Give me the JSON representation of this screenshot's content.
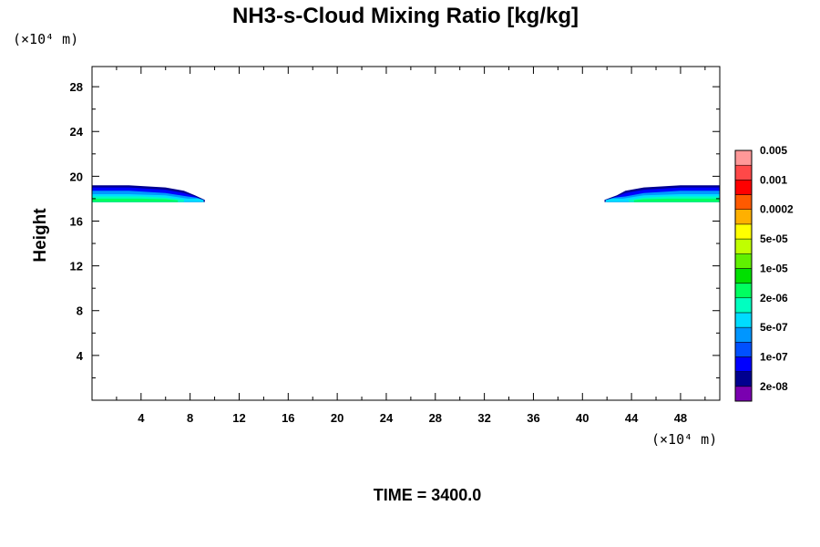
{
  "chart_data": {
    "type": "heatmap",
    "title": "NH3-s-Cloud Mixing Ratio [kg/kg]",
    "ylabel": "Height",
    "xlabel": "",
    "x_unit": "(×10⁴ m)",
    "y_unit": "(×10⁴ m)",
    "xlim": [
      0,
      51.2
    ],
    "ylim": [
      0,
      29.8
    ],
    "x_ticks": [
      4,
      8,
      12,
      16,
      20,
      24,
      28,
      32,
      36,
      40,
      44,
      48
    ],
    "y_ticks": [
      4,
      8,
      12,
      16,
      20,
      24,
      28
    ],
    "grid": false,
    "colorbar": {
      "placement": "right",
      "colors": [
        "#7a00b0",
        "#00008f",
        "#0000ff",
        "#0050ff",
        "#0096ff",
        "#00dcff",
        "#00ffc0",
        "#00ff60",
        "#00e000",
        "#60f000",
        "#c0ff00",
        "#ffff00",
        "#ffb000",
        "#ff5a00",
        "#ff0000",
        "#ff4848",
        "#ff9898"
      ],
      "labels": [
        "2e-08",
        "1e-07",
        "5e-07",
        "2e-06",
        "1e-05",
        "5e-05",
        "0.0002",
        "0.001",
        "0.005"
      ]
    },
    "regions": [
      {
        "name": "left",
        "bands": [
          {
            "color": "#00008f",
            "points": [
              [
                0,
                19.2
              ],
              [
                3,
                19.2
              ],
              [
                6,
                19.0
              ],
              [
                7.5,
                18.7
              ],
              [
                8.4,
                18.3
              ],
              [
                9.2,
                17.9
              ],
              [
                9.2,
                17.7
              ],
              [
                0,
                17.7
              ]
            ]
          },
          {
            "color": "#0000ff",
            "points": [
              [
                0,
                19.0
              ],
              [
                3,
                19.0
              ],
              [
                6,
                18.8
              ],
              [
                7.5,
                18.5
              ],
              [
                8.4,
                18.2
              ],
              [
                9.0,
                17.9
              ],
              [
                9.0,
                17.7
              ],
              [
                0,
                17.7
              ]
            ]
          },
          {
            "color": "#0096ff",
            "points": [
              [
                0,
                18.7
              ],
              [
                3,
                18.7
              ],
              [
                6,
                18.5
              ],
              [
                7.8,
                18.2
              ],
              [
                8.5,
                18.1
              ],
              [
                9.1,
                17.9
              ],
              [
                9.1,
                17.7
              ],
              [
                0,
                17.7
              ]
            ]
          },
          {
            "color": "#00dcff",
            "points": [
              [
                0,
                18.4
              ],
              [
                3,
                18.4
              ],
              [
                6,
                18.3
              ],
              [
                7.8,
                18.0
              ],
              [
                8.7,
                18.0
              ],
              [
                9.1,
                17.85
              ],
              [
                9.1,
                17.7
              ],
              [
                0,
                17.7
              ]
            ]
          },
          {
            "color": "#00ffc0",
            "points": [
              [
                0,
                18.2
              ],
              [
                4,
                18.2
              ],
              [
                6,
                18.1
              ],
              [
                7.5,
                17.9
              ],
              [
                7.5,
                17.7
              ],
              [
                0,
                17.7
              ]
            ]
          },
          {
            "color": "#00ff60",
            "points": [
              [
                0,
                18.0
              ],
              [
                4,
                18.0
              ],
              [
                6,
                17.95
              ],
              [
                7,
                17.85
              ],
              [
                7,
                17.7
              ],
              [
                0,
                17.7
              ]
            ]
          }
        ]
      },
      {
        "name": "right",
        "bands": [
          {
            "color": "#00008f",
            "points": [
              [
                51.2,
                19.2
              ],
              [
                48,
                19.2
              ],
              [
                45,
                19.0
              ],
              [
                43.5,
                18.7
              ],
              [
                42.8,
                18.3
              ],
              [
                41.8,
                17.9
              ],
              [
                41.8,
                17.7
              ],
              [
                51.2,
                17.7
              ]
            ]
          },
          {
            "color": "#0000ff",
            "points": [
              [
                51.2,
                19.0
              ],
              [
                48,
                19.0
              ],
              [
                45,
                18.8
              ],
              [
                43.5,
                18.5
              ],
              [
                42.8,
                18.2
              ],
              [
                42.0,
                17.9
              ],
              [
                42.0,
                17.7
              ],
              [
                51.2,
                17.7
              ]
            ]
          },
          {
            "color": "#0096ff",
            "points": [
              [
                51.2,
                18.7
              ],
              [
                48,
                18.7
              ],
              [
                45,
                18.5
              ],
              [
                43.5,
                18.2
              ],
              [
                42.6,
                18.1
              ],
              [
                41.9,
                17.9
              ],
              [
                41.9,
                17.7
              ],
              [
                51.2,
                17.7
              ]
            ]
          },
          {
            "color": "#00dcff",
            "points": [
              [
                51.2,
                18.4
              ],
              [
                48,
                18.4
              ],
              [
                45,
                18.3
              ],
              [
                43.3,
                18.0
              ],
              [
                42.4,
                18.0
              ],
              [
                41.9,
                17.85
              ],
              [
                41.9,
                17.7
              ],
              [
                51.2,
                17.7
              ]
            ]
          },
          {
            "color": "#00ffc0",
            "points": [
              [
                51.2,
                18.2
              ],
              [
                47,
                18.2
              ],
              [
                45,
                18.1
              ],
              [
                43.8,
                17.9
              ],
              [
                43.8,
                17.7
              ],
              [
                51.2,
                17.7
              ]
            ]
          },
          {
            "color": "#00ff60",
            "points": [
              [
                51.2,
                18.0
              ],
              [
                47,
                18.0
              ],
              [
                45,
                17.95
              ],
              [
                44.2,
                17.85
              ],
              [
                44.2,
                17.7
              ],
              [
                51.2,
                17.7
              ]
            ]
          }
        ]
      }
    ]
  },
  "footer": {
    "time_label": "TIME = 3400.0"
  }
}
